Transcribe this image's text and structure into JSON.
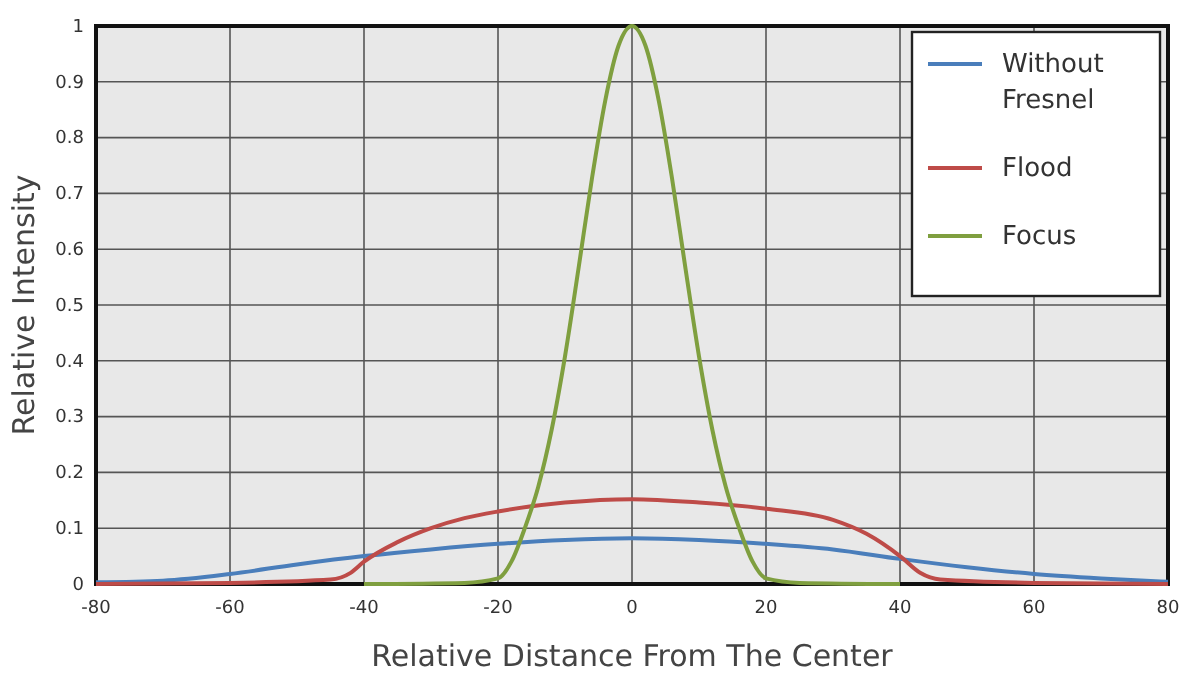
{
  "chart_data": {
    "type": "line",
    "xlabel": "Relative Distance From The Center",
    "ylabel": "Relative Intensity",
    "xlim": [
      -80,
      80
    ],
    "xticks": [
      -80,
      -60,
      -40,
      -20,
      0,
      20,
      40,
      60,
      80
    ],
    "ylim": [
      0,
      1
    ],
    "yticks": [
      0,
      0.1,
      0.2,
      0.3,
      0.4,
      0.5,
      0.6,
      0.7,
      0.8,
      0.9,
      1
    ],
    "grid": true,
    "legend": "top right",
    "marker": "none",
    "line_style": "solid",
    "series": [
      {
        "name": "Without Fresnel",
        "color": "#4a7ebb",
        "x": [
          -80,
          -70,
          -60,
          -50,
          -40,
          -30,
          -20,
          -10,
          0,
          10,
          20,
          30,
          40,
          50,
          60,
          70,
          80
        ],
        "values": [
          0.003,
          0.006,
          0.018,
          0.035,
          0.05,
          0.062,
          0.072,
          0.079,
          0.082,
          0.079,
          0.072,
          0.062,
          0.045,
          0.03,
          0.018,
          0.01,
          0.004
        ]
      },
      {
        "name": "Flood",
        "color": "#be4b48",
        "x": [
          -80,
          -60,
          -45,
          -42,
          -40,
          -35,
          -30,
          -25,
          -20,
          -10,
          0,
          10,
          20,
          30,
          35,
          40,
          43,
          46,
          60,
          80
        ],
        "values": [
          0,
          0.002,
          0.008,
          0.02,
          0.04,
          0.075,
          0.1,
          0.118,
          0.13,
          0.146,
          0.152,
          0.146,
          0.135,
          0.115,
          0.09,
          0.05,
          0.02,
          0.008,
          0.002,
          0
        ]
      },
      {
        "name": "Focus",
        "color": "#7f9f3f",
        "x": [
          -40,
          -25,
          -20,
          -18,
          -16,
          -14,
          -12,
          -10,
          -8,
          -6,
          -4,
          -2,
          0,
          2,
          4,
          6,
          8,
          10,
          12,
          14,
          16,
          18,
          20,
          25,
          40
        ],
        "values": [
          0,
          0.002,
          0.01,
          0.04,
          0.1,
          0.174,
          0.276,
          0.408,
          0.564,
          0.725,
          0.866,
          0.965,
          1,
          0.965,
          0.866,
          0.725,
          0.564,
          0.408,
          0.276,
          0.174,
          0.1,
          0.04,
          0.01,
          0.002,
          0
        ]
      }
    ]
  }
}
